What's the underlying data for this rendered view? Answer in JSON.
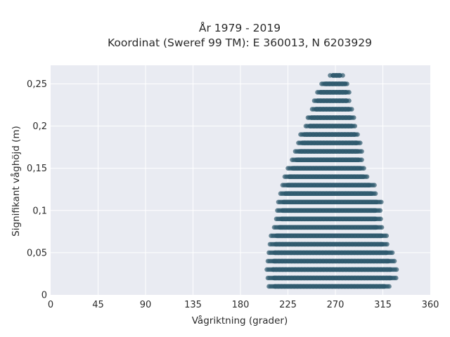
{
  "chart_data": {
    "type": "scatter",
    "title_line1": "År 1979 - 2019",
    "title_line2": "Koordinat (Sweref 99 TM): E 360013, N 6203929",
    "xlabel": "Vågriktning (grader)",
    "ylabel": "Signifikant våghöjd (m)",
    "xlim": [
      0,
      360
    ],
    "ylim": [
      0,
      0.272
    ],
    "x_ticks": [
      0,
      45,
      90,
      135,
      180,
      225,
      270,
      315,
      360
    ],
    "x_tick_labels": [
      "0",
      "45",
      "90",
      "135",
      "180",
      "225",
      "270",
      "315",
      "360"
    ],
    "y_ticks": [
      0,
      0.05,
      0.1,
      0.15,
      0.2,
      0.25
    ],
    "y_tick_labels": [
      "0",
      "0,05",
      "0,1",
      "0,15",
      "0,2",
      "0,25"
    ],
    "grid": true,
    "marker_color": "#2f5a6e",
    "plot_background": "#e9ebf2",
    "series": [
      {
        "values": [
          {
            "y": 0.01,
            "x_min": 207,
            "x_max": 322
          },
          {
            "y": 0.02,
            "x_min": 206,
            "x_max": 328
          },
          {
            "y": 0.03,
            "x_min": 205,
            "x_max": 328
          },
          {
            "y": 0.04,
            "x_min": 206,
            "x_max": 326
          },
          {
            "y": 0.05,
            "x_min": 207,
            "x_max": 324
          },
          {
            "y": 0.06,
            "x_min": 208,
            "x_max": 320
          },
          {
            "y": 0.07,
            "x_min": 209,
            "x_max": 319
          },
          {
            "y": 0.08,
            "x_min": 212,
            "x_max": 314
          },
          {
            "y": 0.09,
            "x_min": 214,
            "x_max": 313
          },
          {
            "y": 0.1,
            "x_min": 215,
            "x_max": 313
          },
          {
            "y": 0.11,
            "x_min": 216,
            "x_max": 314
          },
          {
            "y": 0.12,
            "x_min": 218,
            "x_max": 309
          },
          {
            "y": 0.13,
            "x_min": 220,
            "x_max": 307
          },
          {
            "y": 0.14,
            "x_min": 222,
            "x_max": 301
          },
          {
            "y": 0.15,
            "x_min": 225,
            "x_max": 298
          },
          {
            "y": 0.16,
            "x_min": 229,
            "x_max": 296
          },
          {
            "y": 0.17,
            "x_min": 232,
            "x_max": 295
          },
          {
            "y": 0.18,
            "x_min": 235,
            "x_max": 294
          },
          {
            "y": 0.19,
            "x_min": 237,
            "x_max": 292
          },
          {
            "y": 0.2,
            "x_min": 242,
            "x_max": 289
          },
          {
            "y": 0.21,
            "x_min": 244,
            "x_max": 288
          },
          {
            "y": 0.22,
            "x_min": 248,
            "x_max": 286
          },
          {
            "y": 0.23,
            "x_min": 250,
            "x_max": 284
          },
          {
            "y": 0.24,
            "x_min": 253,
            "x_max": 283
          },
          {
            "y": 0.25,
            "x_min": 257,
            "x_max": 282
          },
          {
            "y": 0.26,
            "x_min": 265,
            "x_max": 277
          }
        ]
      }
    ]
  }
}
